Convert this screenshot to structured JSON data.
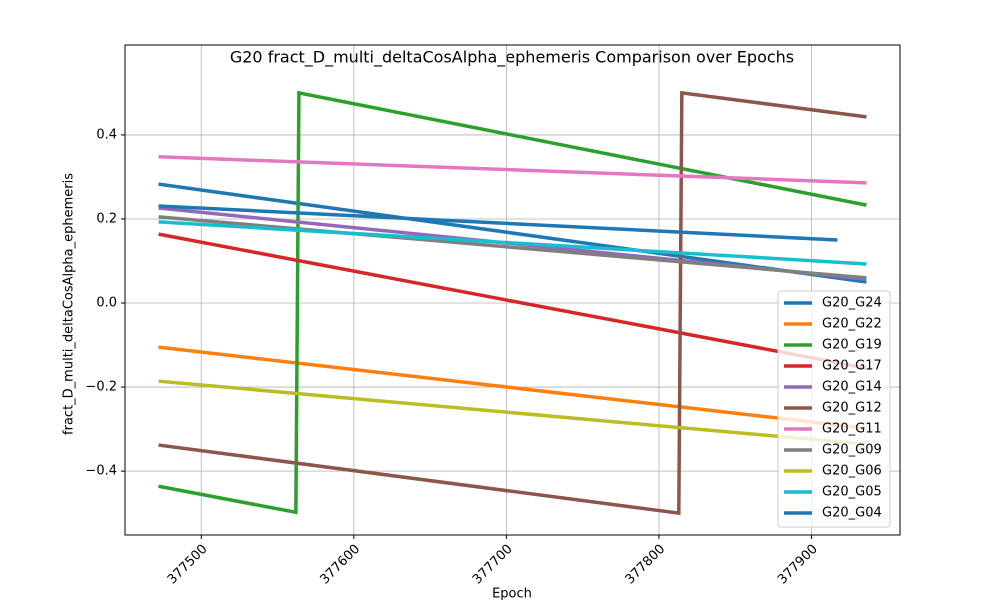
{
  "chart_data": {
    "type": "line",
    "title": "G20 fract_D_multi_deltaCosAlpha_ephemeris Comparison over Epochs",
    "x_label": "Epoch",
    "y_label": "fract_D_multi_deltaCosAlpha_ephemeris",
    "xlim": [
      377450,
      377958
    ],
    "ylim": [
      -0.552,
      0.614
    ],
    "xticks": [
      377500,
      377600,
      377700,
      377800,
      377900
    ],
    "yticks": [
      {
        "value": -0.4,
        "label": "−0.4"
      },
      {
        "value": -0.2,
        "label": "−0.2"
      },
      {
        "value": 0,
        "label": "0.0"
      },
      0.2,
      0.4
    ],
    "grid": true,
    "legend": "lower right",
    "series": [
      {
        "name": "G20_G24",
        "color": "#1f77b4",
        "x": [
          377472,
          377936
        ],
        "values": [
          0.283,
          0.05
        ]
      },
      {
        "name": "G20_G22",
        "color": "#ff7f0e",
        "x": [
          377472,
          377936
        ],
        "values": [
          -0.105,
          -0.298
        ]
      },
      {
        "name": "G20_G19",
        "color": "#2ca02c",
        "x": [
          377472,
          377562,
          377564,
          377936
        ],
        "values": [
          -0.436,
          -0.498,
          0.5,
          0.233
        ]
      },
      {
        "name": "G20_G17",
        "color": "#d62728",
        "x": [
          377472,
          377936
        ],
        "values": [
          0.164,
          -0.155
        ]
      },
      {
        "name": "G20_G14",
        "color": "#9467bd",
        "x": [
          377472,
          377936
        ],
        "values": [
          0.226,
          0.057
        ]
      },
      {
        "name": "G20_G12",
        "color": "#8c564b",
        "x": [
          377472,
          377813,
          377815,
          377936
        ],
        "values": [
          -0.338,
          -0.5,
          0.5,
          0.443
        ]
      },
      {
        "name": "G20_G11",
        "color": "#e377c2",
        "x": [
          377472,
          377936
        ],
        "values": [
          0.348,
          0.286
        ]
      },
      {
        "name": "G20_G09",
        "color": "#7f7f7f",
        "x": [
          377472,
          377936
        ],
        "values": [
          0.205,
          0.06
        ]
      },
      {
        "name": "G20_G06",
        "color": "#bcbd22",
        "x": [
          377472,
          377936
        ],
        "values": [
          -0.186,
          -0.336
        ]
      },
      {
        "name": "G20_G05",
        "color": "#17becf",
        "x": [
          377472,
          377936
        ],
        "values": [
          0.193,
          0.093
        ]
      },
      {
        "name": "G20_G04",
        "color": "#1f77b4",
        "x": [
          377472,
          377917
        ],
        "values": [
          0.231,
          0.15
        ]
      }
    ]
  }
}
